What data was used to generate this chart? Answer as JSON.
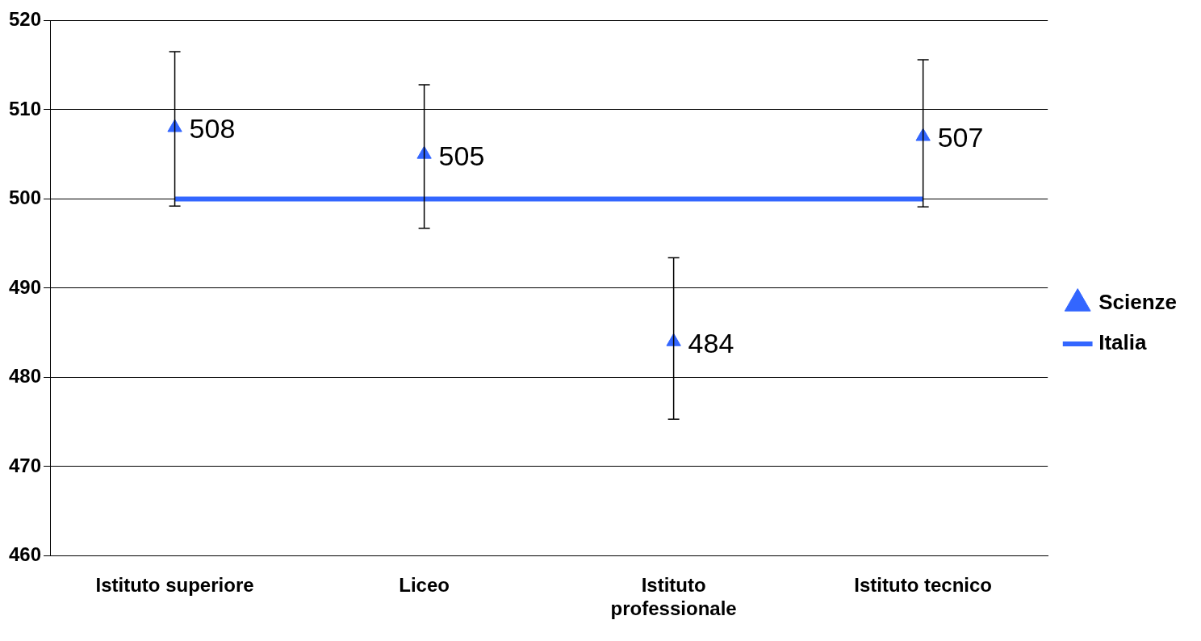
{
  "chart_data": {
    "type": "line",
    "categories": [
      "Istituto superiore",
      "Liceo",
      "Istituto professionale",
      "Istituto tecnico"
    ],
    "series": [
      {
        "name": "Scienze",
        "type": "scatter",
        "color": "#3366ff",
        "marker": "triangle",
        "values": [
          508,
          505,
          484,
          507
        ],
        "errors": [
          [
            499.2,
            516.5
          ],
          [
            496.7,
            512.8
          ],
          [
            475.3,
            493.4
          ],
          [
            499.1,
            515.6
          ]
        ],
        "value_labels": [
          "508",
          "505",
          "484",
          "507"
        ]
      },
      {
        "name": "Italia",
        "color": "#3366ff",
        "marker": "none",
        "line_style": "solid",
        "values": [
          500,
          500,
          500,
          500
        ]
      }
    ],
    "ylim": [
      460,
      520
    ],
    "yticks": [
      460,
      470,
      480,
      490,
      500,
      510,
      520
    ],
    "grid": "y",
    "legend": "right"
  }
}
